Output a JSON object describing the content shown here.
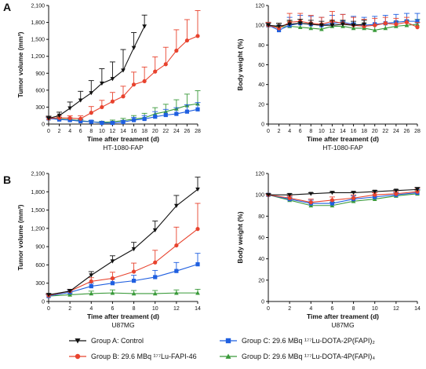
{
  "panel_letters": [
    "A",
    "B"
  ],
  "legend": {
    "items": [
      {
        "label": "Group A: Control",
        "color": "#111111",
        "marker": "tri-down"
      },
      {
        "label": "Group B: 29.6 MBq ¹⁷⁷Lu-FAPI-46",
        "color": "#e8432e",
        "marker": "circle"
      },
      {
        "label": "Group C: 29.6 MBq ¹⁷⁷Lu-DOTA-2P(FAPI)₂",
        "color": "#1f5fe0",
        "marker": "square"
      },
      {
        "label": "Group D: 29.6 MBq ¹⁷⁷Lu-DOTA-4P(FAPI)₄",
        "color": "#3a9a3a",
        "marker": "tri-up"
      }
    ]
  },
  "chart_data": [
    {
      "type": "line",
      "panel": "A",
      "ylabel": "Tumor volume (mm³)",
      "xlabel": "Time after treament (d)",
      "caption": "HT-1080-FAP",
      "xlim": [
        0,
        28
      ],
      "ylim": [
        0,
        2100
      ],
      "xticks": [
        0,
        2,
        4,
        6,
        8,
        10,
        12,
        14,
        16,
        18,
        20,
        22,
        24,
        26,
        28
      ],
      "yticks": [
        0,
        300,
        600,
        900,
        1200,
        1500,
        1800,
        2100
      ],
      "ytick_labels": [
        "0",
        "300",
        "600",
        "900",
        "1,200",
        "1,500",
        "1,800",
        "2,100"
      ],
      "series": [
        {
          "name": "Group A: Control",
          "color": "#111111",
          "marker": "tri-down",
          "x": [
            0,
            2,
            4,
            6,
            8,
            10,
            12,
            14,
            16,
            18
          ],
          "y": [
            100,
            150,
            280,
            420,
            550,
            720,
            800,
            950,
            1350,
            1730
          ],
          "err": [
            40,
            60,
            110,
            160,
            220,
            260,
            300,
            370,
            270,
            200
          ]
        },
        {
          "name": "Group B: 29.6 MBq ¹⁷⁷Lu-FAPI-46",
          "color": "#e8432e",
          "marker": "circle",
          "x": [
            0,
            2,
            4,
            6,
            8,
            10,
            12,
            14,
            16,
            18,
            20,
            22,
            24,
            26,
            28
          ],
          "y": [
            100,
            110,
            105,
            95,
            200,
            300,
            400,
            490,
            700,
            760,
            930,
            1060,
            1300,
            1480,
            1560
          ],
          "err": [
            30,
            40,
            40,
            50,
            110,
            120,
            160,
            180,
            220,
            250,
            260,
            300,
            370,
            370,
            450
          ]
        },
        {
          "name": "Group C: 29.6 MBq ¹⁷⁷Lu-DOTA-2P(FAPI)₂",
          "color": "#1f5fe0",
          "marker": "square",
          "x": [
            0,
            2,
            4,
            6,
            8,
            10,
            12,
            14,
            16,
            18,
            20,
            22,
            24,
            26,
            28
          ],
          "y": [
            100,
            80,
            70,
            50,
            40,
            20,
            20,
            35,
            70,
            90,
            130,
            160,
            180,
            220,
            260
          ],
          "err": [
            20,
            30,
            30,
            30,
            25,
            20,
            20,
            30,
            50,
            60,
            90,
            100,
            110,
            120,
            120
          ]
        },
        {
          "name": "Group D: 29.6 MBq ¹⁷⁷Lu-DOTA-4P(FAPI)₄",
          "color": "#3a9a3a",
          "marker": "tri-up",
          "x": [
            0,
            2,
            4,
            6,
            8,
            10,
            12,
            14,
            16,
            18,
            20,
            22,
            24,
            26,
            28
          ],
          "y": [
            100,
            90,
            80,
            60,
            40,
            30,
            40,
            60,
            90,
            110,
            180,
            220,
            270,
            330,
            360
          ],
          "err": [
            20,
            30,
            30,
            30,
            20,
            20,
            30,
            40,
            60,
            80,
            110,
            130,
            160,
            200,
            230
          ]
        }
      ]
    },
    {
      "type": "line",
      "panel": "A",
      "ylabel": "Body weight (%)",
      "xlabel": "Time after treament (d)",
      "caption": "HT-1080-FAP",
      "xlim": [
        0,
        28
      ],
      "ylim": [
        0,
        120
      ],
      "xticks": [
        0,
        2,
        4,
        6,
        8,
        10,
        12,
        14,
        16,
        18,
        20,
        22,
        24,
        26,
        28
      ],
      "yticks": [
        0,
        20,
        40,
        60,
        80,
        100,
        120
      ],
      "ytick_labels": [
        "0",
        "20",
        "40",
        "60",
        "80",
        "100",
        "120"
      ],
      "series": [
        {
          "name": "Group A: Control",
          "color": "#111111",
          "marker": "tri-down",
          "x": [
            0,
            2,
            4,
            6,
            8,
            10,
            12,
            14,
            16,
            18
          ],
          "y": [
            100,
            99,
            101,
            102,
            101,
            100,
            100,
            101,
            100,
            101
          ],
          "err": [
            2,
            3,
            4,
            4,
            4,
            4,
            5,
            4,
            4,
            4
          ]
        },
        {
          "name": "Group B: 29.6 MBq ¹⁷⁷Lu-FAPI-46",
          "color": "#e8432e",
          "marker": "circle",
          "x": [
            0,
            2,
            4,
            6,
            8,
            10,
            12,
            14,
            16,
            18,
            20,
            22,
            24,
            26,
            28
          ],
          "y": [
            100,
            97,
            103,
            104,
            102,
            101,
            104,
            102,
            100,
            99,
            100,
            102,
            101,
            103,
            98
          ],
          "err": [
            3,
            5,
            9,
            8,
            8,
            7,
            10,
            9,
            8,
            7,
            7,
            6,
            6,
            5,
            5
          ]
        },
        {
          "name": "Group C: 29.6 MBq ¹⁷⁷Lu-DOTA-2P(FAPI)₂",
          "color": "#1f5fe0",
          "marker": "square",
          "x": [
            0,
            2,
            4,
            6,
            8,
            10,
            12,
            14,
            16,
            18,
            20,
            22,
            24,
            26,
            28
          ],
          "y": [
            100,
            95,
            100,
            102,
            101,
            100,
            102,
            103,
            101,
            100,
            101,
            102,
            103,
            104,
            104
          ],
          "err": [
            3,
            5,
            8,
            8,
            8,
            8,
            8,
            8,
            8,
            8,
            8,
            8,
            8,
            8,
            8
          ]
        },
        {
          "name": "Group D: 29.6 MBq ¹⁷⁷Lu-DOTA-4P(FAPI)₄",
          "color": "#3a9a3a",
          "marker": "tri-up",
          "x": [
            0,
            2,
            4,
            6,
            8,
            10,
            12,
            14,
            16,
            18,
            20,
            22,
            24,
            26,
            28
          ],
          "y": [
            100,
            98,
            99,
            98,
            97,
            96,
            99,
            99,
            97,
            97,
            95,
            97,
            99,
            100,
            101
          ],
          "err": [
            3,
            4,
            5,
            5,
            5,
            5,
            5,
            5,
            5,
            5,
            5,
            5,
            5,
            5,
            5
          ]
        }
      ]
    },
    {
      "type": "line",
      "panel": "B",
      "ylabel": "Tumor volume (mm³)",
      "xlabel": "Time after treament (d)",
      "caption": "U87MG",
      "xlim": [
        0,
        14
      ],
      "ylim": [
        0,
        2100
      ],
      "xticks": [
        0,
        2,
        4,
        6,
        8,
        10,
        12,
        14
      ],
      "yticks": [
        0,
        300,
        600,
        900,
        1200,
        1500,
        1800,
        2100
      ],
      "ytick_labels": [
        "0",
        "300",
        "600",
        "900",
        "1,200",
        "1,500",
        "1,800",
        "2,100"
      ],
      "series": [
        {
          "name": "Group A: Control",
          "color": "#111111",
          "marker": "tri-down",
          "x": [
            0,
            2,
            4,
            6,
            8,
            10,
            12,
            14
          ],
          "y": [
            110,
            170,
            430,
            660,
            860,
            1170,
            1570,
            1840
          ],
          "err": [
            20,
            30,
            60,
            90,
            110,
            150,
            170,
            200
          ]
        },
        {
          "name": "Group B: 29.6 MBq ¹⁷⁷Lu-FAPI-46",
          "color": "#e8432e",
          "marker": "circle",
          "x": [
            0,
            2,
            4,
            6,
            8,
            10,
            12,
            14
          ],
          "y": [
            100,
            170,
            330,
            380,
            490,
            640,
            920,
            1190
          ],
          "err": [
            20,
            30,
            60,
            100,
            140,
            200,
            300,
            420
          ]
        },
        {
          "name": "Group C: 29.6 MBq ¹⁷⁷Lu-DOTA-2P(FAPI)₂",
          "color": "#1f5fe0",
          "marker": "square",
          "x": [
            0,
            2,
            4,
            6,
            8,
            10,
            12,
            14
          ],
          "y": [
            90,
            150,
            250,
            300,
            340,
            400,
            500,
            610
          ],
          "err": [
            20,
            30,
            50,
            70,
            90,
            110,
            140,
            180
          ]
        },
        {
          "name": "Group D: 29.6 MBq ¹⁷⁷Lu-DOTA-4P(FAPI)₄",
          "color": "#3a9a3a",
          "marker": "tri-up",
          "x": [
            0,
            2,
            4,
            6,
            8,
            10,
            12,
            14
          ],
          "y": [
            90,
            110,
            130,
            140,
            130,
            130,
            140,
            140
          ],
          "err": [
            20,
            30,
            40,
            50,
            50,
            50,
            50,
            60
          ]
        }
      ]
    },
    {
      "type": "line",
      "panel": "B",
      "ylabel": "Body weight (%)",
      "xlabel": "Time after treament (d)",
      "caption": "U87MG",
      "xlim": [
        0,
        14
      ],
      "ylim": [
        0,
        120
      ],
      "xticks": [
        0,
        2,
        4,
        6,
        8,
        10,
        12,
        14
      ],
      "yticks": [
        0,
        20,
        40,
        60,
        80,
        100,
        120
      ],
      "ytick_labels": [
        "0",
        "20",
        "40",
        "60",
        "80",
        "100",
        "120"
      ],
      "series": [
        {
          "name": "Group A: Control",
          "color": "#111111",
          "marker": "tri-down",
          "x": [
            0,
            2,
            4,
            6,
            8,
            10,
            12,
            14
          ],
          "y": [
            100,
            100,
            101,
            102,
            102,
            103,
            104,
            105
          ],
          "err": [
            1,
            1,
            1,
            1,
            1,
            1,
            1,
            2
          ]
        },
        {
          "name": "Group B: 29.6 MBq ¹⁷⁷Lu-FAPI-46",
          "color": "#e8432e",
          "marker": "circle",
          "x": [
            0,
            2,
            4,
            6,
            8,
            10,
            12,
            14
          ],
          "y": [
            100,
            97,
            93,
            95,
            97,
            100,
            101,
            103
          ],
          "err": [
            1,
            2,
            3,
            3,
            3,
            2,
            2,
            3
          ]
        },
        {
          "name": "Group C: 29.6 MBq ¹⁷⁷Lu-DOTA-2P(FAPI)₂",
          "color": "#1f5fe0",
          "marker": "square",
          "x": [
            0,
            2,
            4,
            6,
            8,
            10,
            12,
            14
          ],
          "y": [
            100,
            96,
            92,
            92,
            96,
            98,
            100,
            102
          ],
          "err": [
            1,
            2,
            3,
            3,
            3,
            2,
            2,
            3
          ]
        },
        {
          "name": "Group D: 29.6 MBq ¹⁷⁷Lu-DOTA-4P(FAPI)₄",
          "color": "#3a9a3a",
          "marker": "tri-up",
          "x": [
            0,
            2,
            4,
            6,
            8,
            10,
            12,
            14
          ],
          "y": [
            100,
            95,
            90,
            90,
            94,
            96,
            99,
            101
          ],
          "err": [
            1,
            2,
            3,
            3,
            3,
            2,
            2,
            3
          ]
        }
      ]
    }
  ]
}
